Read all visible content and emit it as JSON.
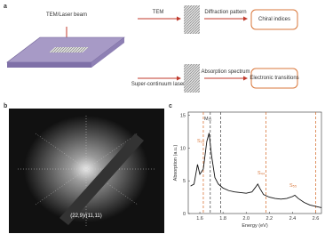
{
  "panel_a": {
    "label": "a",
    "beam": "TEM/Laser beam",
    "row1": {
      "source": "TEM",
      "probe": "Diffraction pattern",
      "result": "Chiral indices"
    },
    "row2": {
      "source": "Super-continuum laser",
      "probe": "Absorption spectrum",
      "result": "Electronic transitions"
    }
  },
  "panel_b": {
    "label": "b",
    "caption": "(22,9)/(11,11)"
  },
  "panel_c": {
    "label": "c",
    "annotations": [
      "S₃₃",
      "M₁₁",
      "S₄₄",
      "S₅₅"
    ]
  },
  "chart_data": {
    "type": "line",
    "xlabel": "Energy (eV)",
    "ylabel": "Absorption (a.u.)",
    "xlim": [
      1.5,
      2.65
    ],
    "ylim": [
      0,
      15.5
    ],
    "xticks": [
      1.6,
      1.8,
      {
        "value": 2.0,
        "label": "2.0"
      },
      2.2,
      2.4,
      2.6
    ],
    "yticks": [
      0,
      5,
      10,
      15
    ],
    "series": [
      {
        "name": null,
        "color": "#111111",
        "x": [
          1.52,
          1.55,
          1.58,
          1.6,
          1.63,
          1.66,
          1.68,
          1.7,
          1.73,
          1.76,
          1.8,
          1.85,
          1.9,
          1.95,
          2.0,
          2.05,
          2.08,
          2.1,
          2.12,
          2.15,
          2.2,
          2.25,
          2.3,
          2.35,
          2.4,
          2.42,
          2.45,
          2.5,
          2.55,
          2.6,
          2.65
        ],
        "values": [
          4.2,
          4.5,
          7.5,
          6.0,
          6.8,
          11,
          12.3,
          9,
          5.5,
          4.5,
          3.9,
          3.5,
          3.3,
          3.2,
          3.1,
          3.3,
          4.0,
          4.5,
          3.8,
          2.9,
          2.5,
          2.3,
          2.2,
          2.3,
          2.6,
          2.8,
          2.3,
          1.7,
          1.3,
          1.1,
          0.9
        ]
      }
    ],
    "reference_lines": [
      {
        "x": 1.63,
        "color": "#d9773b"
      },
      {
        "x": 1.69,
        "color": "#555555"
      },
      {
        "x": 1.78,
        "color": "#555555"
      },
      {
        "x": 2.17,
        "color": "#d9773b"
      },
      {
        "x": 2.6,
        "color": "#d9773b"
      }
    ]
  }
}
